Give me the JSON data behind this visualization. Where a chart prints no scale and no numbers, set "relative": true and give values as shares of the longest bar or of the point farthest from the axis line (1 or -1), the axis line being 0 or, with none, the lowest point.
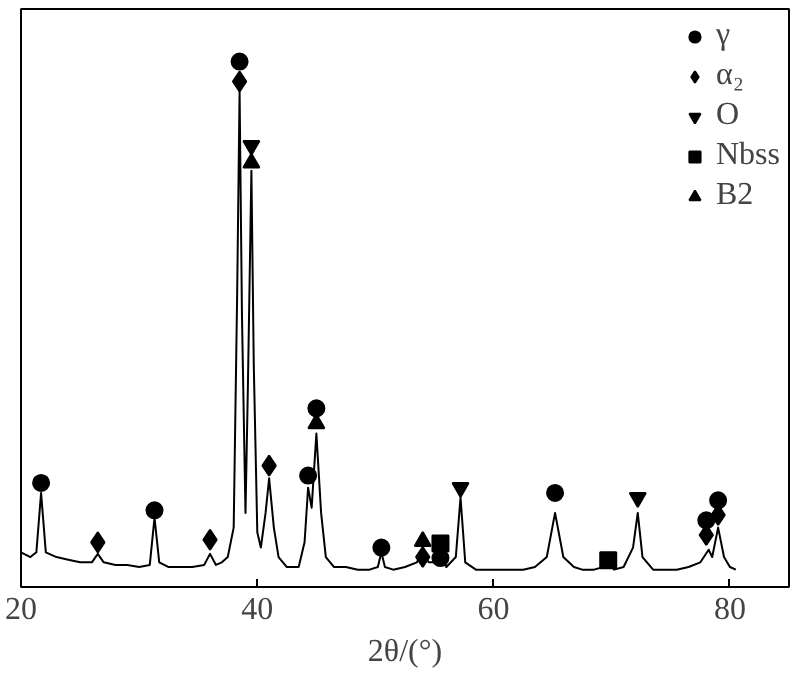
{
  "chart_data": {
    "type": "line",
    "xlabel": "2θ/(°)",
    "relative": true,
    "xlim": [
      20,
      85
    ],
    "xticks": [
      20,
      40,
      60,
      80
    ],
    "tick_labels": "x",
    "grid": false,
    "legend": "top right",
    "series": [
      {
        "color": "#000000",
        "x": [
          20,
          20.8,
          21.3,
          21.7,
          22.1,
          23,
          24,
          25,
          26,
          26.5,
          27,
          28,
          29,
          30,
          30.9,
          31.3,
          31.7,
          32.5,
          33.5,
          34.5,
          35.5,
          36,
          36.5,
          37,
          37.5,
          38,
          38.3,
          38.5,
          38.7,
          39,
          39.2,
          39.5,
          39.7,
          40,
          40.3,
          40.7,
          41,
          41.4,
          41.8,
          42.5,
          43.5,
          44,
          44.3,
          44.6,
          45,
          45.4,
          45.8,
          46.5,
          47.5,
          48.5,
          49.5,
          50.2,
          50.5,
          50.8,
          51.5,
          52.5,
          53.5,
          54,
          54.5,
          55,
          55.5,
          56,
          56.8,
          57.2,
          57.6,
          58.5,
          59.5,
          60.5,
          61.5,
          62.5,
          63.5,
          64.5,
          65.2,
          65.9,
          66.8,
          67.5,
          68.5,
          69.3,
          69.7,
          70.2,
          71,
          71.8,
          72.2,
          72.6,
          73.5,
          74.5,
          75.5,
          76.5,
          77.5,
          78.2,
          78.5,
          79,
          79.5,
          80,
          80.5
        ],
        "values": [
          0.066,
          0.057,
          0.066,
          0.179,
          0.066,
          0.057,
          0.052,
          0.047,
          0.047,
          0.063,
          0.047,
          0.042,
          0.042,
          0.038,
          0.042,
          0.132,
          0.047,
          0.038,
          0.038,
          0.038,
          0.042,
          0.063,
          0.042,
          0.047,
          0.057,
          0.113,
          0.566,
          0.943,
          0.519,
          0.141,
          0.377,
          0.792,
          0.424,
          0.104,
          0.075,
          0.141,
          0.207,
          0.113,
          0.057,
          0.038,
          0.038,
          0.085,
          0.189,
          0.151,
          0.292,
          0.141,
          0.057,
          0.038,
          0.038,
          0.033,
          0.033,
          0.038,
          0.066,
          0.038,
          0.033,
          0.038,
          0.047,
          0.066,
          0.047,
          0.047,
          0.066,
          0.038,
          0.057,
          0.17,
          0.047,
          0.033,
          0.033,
          0.033,
          0.033,
          0.033,
          0.038,
          0.057,
          0.141,
          0.057,
          0.038,
          0.033,
          0.033,
          0.038,
          0.047,
          0.033,
          0.038,
          0.075,
          0.141,
          0.057,
          0.033,
          0.033,
          0.033,
          0.038,
          0.047,
          0.071,
          0.057,
          0.113,
          0.057,
          0.038,
          0.033
        ]
      },
      {
        "type": "scatter",
        "name": "γ",
        "marker": "circle",
        "color": "#000000",
        "x": [
          21.7,
          31.3,
          38.5,
          44.3,
          45.0,
          50.5,
          55.5,
          65.2,
          78.0,
          79.0
        ],
        "values": [
          0.198,
          0.146,
          1.0,
          0.212,
          0.34,
          0.075,
          0.055,
          0.179,
          0.127,
          0.165
        ]
      },
      {
        "type": "scatter",
        "name": "α₂",
        "marker": "diamond",
        "color": "#000000",
        "x": [
          26.5,
          36,
          38.5,
          41,
          54,
          78.0,
          79.0
        ],
        "values": [
          0.085,
          0.09,
          0.962,
          0.231,
          0.057,
          0.099,
          0.137
        ]
      },
      {
        "type": "scatter",
        "name": "O",
        "color": "#000000",
        "x": [
          39.5,
          57.2,
          72.2
        ],
        "values": [
          0.84,
          0.189,
          0.17
        ]
      },
      {
        "type": "scatter",
        "name": "Nbss",
        "marker": "square",
        "color": "#000000",
        "x": [
          55.5,
          69.7
        ],
        "values": [
          0.083,
          0.051
        ]
      },
      {
        "type": "scatter",
        "name": "B2",
        "marker": "triangle",
        "color": "#000000",
        "x": [
          39.5,
          45.0,
          54
        ],
        "values": [
          0.807,
          0.311,
          0.087
        ]
      }
    ]
  }
}
